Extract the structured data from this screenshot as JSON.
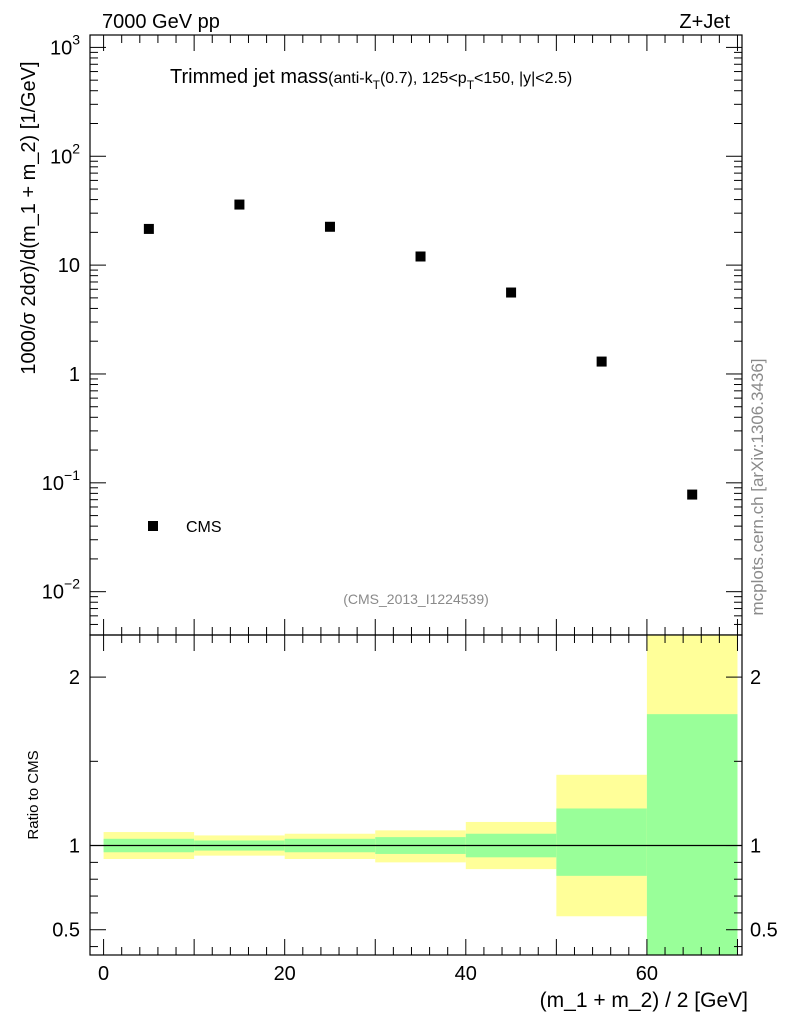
{
  "header": {
    "energy_label": "7000 GeV pp",
    "process_label": "Z+Jet",
    "side_label": "mcplots.cern.ch [arXiv:1306.3436]"
  },
  "chart_data": [
    {
      "type": "scatter",
      "title_main": "Trimmed jet mass",
      "title_detail": "(anti-k_T(0.7), 125<p_T<150, |y|<2.5)",
      "ylabel": "1000/σ 2dσ)/d(m_1 + m_2) [1/GeV]",
      "yscale": "log",
      "xlim": [
        -1.5,
        70.5
      ],
      "ylim": [
        0.004,
        1300
      ],
      "y_ticks": [
        {
          "value": 0.01,
          "base": "10",
          "exp": "−2"
        },
        {
          "value": 0.1,
          "base": "10",
          "exp": "−1"
        },
        {
          "value": 1,
          "base": "1",
          "exp": ""
        },
        {
          "value": 10,
          "base": "10",
          "exp": ""
        },
        {
          "value": 100,
          "base": "10",
          "exp": "2"
        },
        {
          "value": 1000,
          "base": "10",
          "exp": "3"
        }
      ],
      "series": [
        {
          "name": "CMS",
          "marker": "square",
          "color": "#000000",
          "x": [
            5,
            15,
            25,
            35,
            45,
            55,
            65
          ],
          "y": [
            21.5,
            36,
            22.5,
            12,
            5.6,
            1.3,
            0.078
          ]
        }
      ],
      "legend_position": "bottom-left",
      "watermark": "(CMS_2013_I1224539)"
    },
    {
      "type": "area",
      "ylabel": "Ratio to CMS",
      "xlabel": "(m_1 + m_2) / 2 [GeV]",
      "xlim": [
        -1.5,
        70.5
      ],
      "ylim": [
        0.35,
        2.25
      ],
      "x_ticks": [
        0,
        20,
        40,
        60
      ],
      "y_ticks": [
        0.5,
        1,
        2
      ],
      "reference_line": 1,
      "band_colors": {
        "outer": "#ffff99",
        "inner": "#99ff99"
      },
      "bins": [
        {
          "x0": 0,
          "x1": 10,
          "outer": [
            0.92,
            1.08
          ],
          "inner": [
            0.96,
            1.04
          ]
        },
        {
          "x0": 10,
          "x1": 20,
          "outer": [
            0.94,
            1.06
          ],
          "inner": [
            0.97,
            1.03
          ]
        },
        {
          "x0": 20,
          "x1": 30,
          "outer": [
            0.92,
            1.07
          ],
          "inner": [
            0.96,
            1.04
          ]
        },
        {
          "x0": 30,
          "x1": 40,
          "outer": [
            0.9,
            1.09
          ],
          "inner": [
            0.95,
            1.05
          ]
        },
        {
          "x0": 40,
          "x1": 50,
          "outer": [
            0.86,
            1.14
          ],
          "inner": [
            0.93,
            1.07
          ]
        },
        {
          "x0": 50,
          "x1": 60,
          "outer": [
            0.58,
            1.42
          ],
          "inner": [
            0.82,
            1.22
          ]
        },
        {
          "x0": 60,
          "x1": 70,
          "outer": [
            0.35,
            2.25
          ],
          "inner": [
            0.35,
            1.78
          ]
        }
      ]
    }
  ]
}
